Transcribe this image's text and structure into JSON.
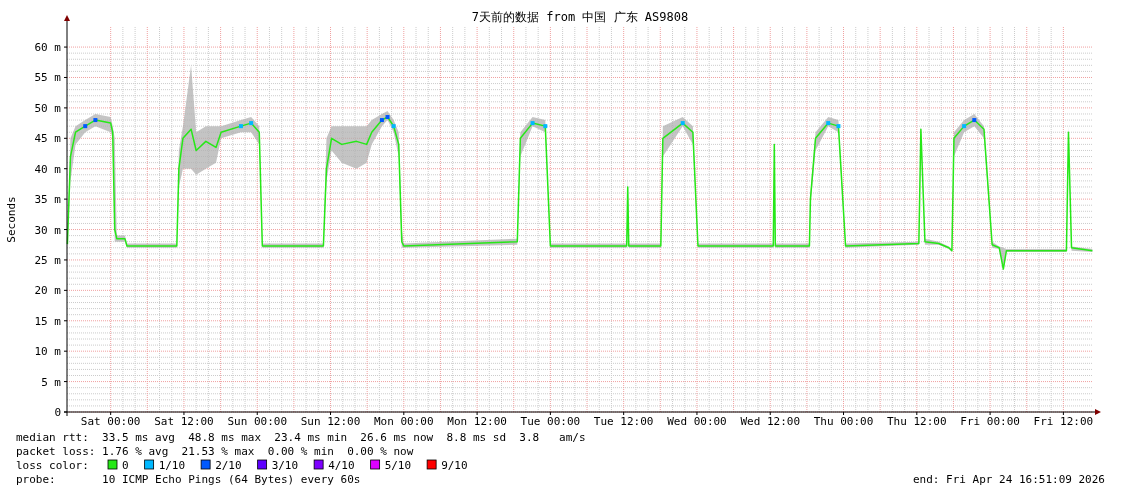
{
  "chart_data": {
    "type": "line",
    "title": "7天前的数据 from 中国 广东 AS9808",
    "ylabel": "Seconds",
    "legend_title": "loss color:",
    "legend": "bottom",
    "grid": true,
    "xlim": [
      "2026-04-17T16:51",
      "2026-04-24T16:51"
    ],
    "xticks": [
      {
        "value": "2026-04-18T00:00",
        "label": "Sat 00:00"
      },
      {
        "value": "2026-04-18T12:00",
        "label": "Sat 12:00"
      },
      {
        "value": "2026-04-19T00:00",
        "label": "Sun 00:00"
      },
      {
        "value": "2026-04-19T12:00",
        "label": "Sun 12:00"
      },
      {
        "value": "2026-04-20T00:00",
        "label": "Mon 00:00"
      },
      {
        "value": "2026-04-20T12:00",
        "label": "Mon 12:00"
      },
      {
        "value": "2026-04-21T00:00",
        "label": "Tue 00:00"
      },
      {
        "value": "2026-04-21T12:00",
        "label": "Tue 12:00"
      },
      {
        "value": "2026-04-22T00:00",
        "label": "Wed 00:00"
      },
      {
        "value": "2026-04-22T12:00",
        "label": "Wed 12:00"
      },
      {
        "value": "2026-04-23T00:00",
        "label": "Thu 00:00"
      },
      {
        "value": "2026-04-23T12:00",
        "label": "Thu 12:00"
      },
      {
        "value": "2026-04-24T00:00",
        "label": "Fri 00:00"
      },
      {
        "value": "2026-04-24T12:00",
        "label": "Fri 12:00"
      }
    ],
    "ylim": [
      0,
      63.3
    ],
    "yticks": [
      0,
      {
        "value": 5,
        "label": "5 m"
      },
      {
        "value": 10,
        "label": "10 m"
      },
      {
        "value": 15,
        "label": "15 m"
      },
      {
        "value": 20,
        "label": "20 m"
      },
      {
        "value": 25,
        "label": "25 m"
      },
      {
        "value": 30,
        "label": "30 m"
      },
      {
        "value": 35,
        "label": "35 m"
      },
      {
        "value": 40,
        "label": "40 m"
      },
      {
        "value": 45,
        "label": "45 m"
      },
      {
        "value": 50,
        "label": "50 m"
      },
      {
        "value": 55,
        "label": "55 m"
      },
      {
        "value": 60,
        "label": "60 m"
      }
    ],
    "x": [
      "2026-04-17T16:55",
      "2026-04-17T17:25",
      "2026-04-17T18:15",
      "2026-04-17T19:50",
      "2026-04-17T21:30",
      "2026-04-18T00:00",
      "2026-04-18T00:20",
      "2026-04-18T00:40",
      "2026-04-18T01:00",
      "2026-04-18T02:20",
      "2026-04-18T02:40",
      "2026-04-18T10:50",
      "2026-04-18T11:10",
      "2026-04-18T11:50",
      "2026-04-18T13:10",
      "2026-04-18T14:00",
      "2026-04-18T15:35",
      "2026-04-18T17:15",
      "2026-04-18T18:05",
      "2026-04-18T21:20",
      "2026-04-18T23:00",
      "2026-04-19T00:20",
      "2026-04-19T00:50",
      "2026-04-19T10:50",
      "2026-04-19T11:20",
      "2026-04-19T12:10",
      "2026-04-19T13:50",
      "2026-04-19T16:15",
      "2026-04-19T17:55",
      "2026-04-19T18:45",
      "2026-04-19T20:25",
      "2026-04-19T21:20",
      "2026-04-19T22:20",
      "2026-04-19T23:10",
      "2026-04-19T23:40",
      "2026-04-20T00:00",
      "2026-04-20T18:35",
      "2026-04-20T19:05",
      "2026-04-20T21:05",
      "2026-04-20T23:10",
      "2026-04-21T00:00",
      "2026-04-21T12:30",
      "2026-04-21T12:40",
      "2026-04-21T12:50",
      "2026-04-21T18:05",
      "2026-04-21T18:25",
      "2026-04-21T21:40",
      "2026-04-21T23:20",
      "2026-04-22T00:10",
      "2026-04-22T12:30",
      "2026-04-22T12:40",
      "2026-04-22T12:50",
      "2026-04-22T18:25",
      "2026-04-22T18:35",
      "2026-04-22T19:25",
      "2026-04-22T21:30",
      "2026-04-22T23:10",
      "2026-04-23T00:20",
      "2026-04-23T12:20",
      "2026-04-23T12:40",
      "2026-04-23T13:20",
      "2026-04-23T15:35",
      "2026-04-23T17:15",
      "2026-04-23T17:45",
      "2026-04-23T18:05",
      "2026-04-23T19:45",
      "2026-04-23T21:25",
      "2026-04-23T23:00",
      "2026-04-24T00:20",
      "2026-04-24T01:30",
      "2026-04-24T02:10",
      "2026-04-24T02:40",
      "2026-04-24T12:30",
      "2026-04-24T12:50",
      "2026-04-24T13:20",
      "2026-04-24T16:45"
    ],
    "series": [
      {
        "name": "0",
        "color": "#26e817",
        "values": [
          27.6,
          42,
          46,
          47,
          48,
          47.5,
          46,
          30,
          28.5,
          28.5,
          27.3,
          27.3,
          40,
          45,
          46.5,
          43,
          44.5,
          43.5,
          46,
          47,
          47.5,
          46,
          27.3,
          27.3,
          40,
          45,
          44,
          44.5,
          44,
          46,
          48,
          48.5,
          47,
          44,
          28,
          27.3,
          28,
          45,
          47.5,
          47,
          27.3,
          27.3,
          37,
          27.3,
          27.3,
          45,
          47.5,
          46,
          27.3,
          27.3,
          44,
          27.3,
          27.3,
          35,
          45,
          47.5,
          47,
          27.3,
          27.7,
          46.5,
          28,
          27.7,
          27,
          26.5,
          45,
          47,
          48,
          46.5,
          27.5,
          27,
          23.5,
          26.5,
          26.5,
          46,
          27,
          26.5
        ],
        "lower": [
          27.4,
          38,
          44,
          46,
          47,
          46,
          45,
          28,
          28,
          28,
          27,
          27,
          37,
          40,
          40,
          39,
          40,
          41,
          45,
          46,
          46,
          44,
          27,
          27,
          38,
          43,
          41,
          40,
          41,
          44,
          47,
          48,
          46,
          42,
          27,
          27,
          27.5,
          42,
          47,
          46,
          27,
          27,
          35,
          27,
          27,
          42,
          47,
          44,
          27,
          27,
          42,
          27,
          27,
          34,
          43,
          47,
          46,
          27,
          27.5,
          45,
          27.5,
          27.5,
          26.8,
          26.3,
          42,
          46,
          47,
          45,
          27,
          26.8,
          23.5,
          26.3,
          26.3,
          44,
          26.5,
          26.3
        ],
        "upper": [
          28,
          45,
          47,
          48,
          49,
          48.5,
          47,
          45,
          29,
          29,
          27.7,
          27.7,
          43,
          47,
          57,
          46,
          47,
          47,
          47,
          48,
          48.5,
          47,
          27.7,
          27.7,
          45,
          47,
          47,
          47,
          47,
          48,
          49,
          49.5,
          48,
          46,
          30,
          27.7,
          28.5,
          46,
          48.5,
          48,
          27.7,
          27.7,
          39,
          27.7,
          27.7,
          47,
          48.5,
          47,
          27.7,
          27.7,
          45,
          27.7,
          27.7,
          36,
          46,
          48.5,
          48,
          27.7,
          28,
          47,
          28.5,
          28,
          27.2,
          26.8,
          46,
          48,
          49,
          47,
          28,
          27.2,
          27,
          26.8,
          26.8,
          47,
          27.2,
          26.8
        ]
      },
      {
        "name": "1/10",
        "color": "#00b8ff",
        "type": "scatter",
        "values": [
          null,
          null,
          null,
          null,
          null,
          null,
          null,
          null,
          null,
          null,
          null,
          null,
          null,
          null,
          null,
          null,
          null,
          null,
          null,
          47,
          47.5,
          null,
          null,
          null,
          null,
          null,
          null,
          null,
          null,
          null,
          null,
          null,
          47,
          null,
          null,
          null,
          null,
          null,
          47.5,
          47,
          null,
          null,
          null,
          null,
          null,
          null,
          47.5,
          null,
          null,
          null,
          null,
          null,
          null,
          null,
          null,
          47.5,
          47,
          null,
          null,
          null,
          null,
          null,
          null,
          null,
          null,
          47,
          null,
          null,
          null,
          null,
          null,
          null,
          null,
          null,
          null,
          null
        ]
      },
      {
        "name": "2/10",
        "color": "#0059ff",
        "type": "scatter",
        "values": [
          null,
          null,
          null,
          47,
          48,
          null,
          null,
          null,
          null,
          null,
          null,
          null,
          null,
          null,
          null,
          null,
          null,
          null,
          null,
          null,
          null,
          null,
          null,
          null,
          null,
          null,
          null,
          null,
          null,
          null,
          48,
          48.5,
          null,
          null,
          null,
          null,
          null,
          null,
          null,
          null,
          null,
          null,
          null,
          null,
          null,
          null,
          null,
          null,
          null,
          null,
          null,
          null,
          null,
          null,
          null,
          null,
          null,
          null,
          null,
          null,
          null,
          null,
          null,
          null,
          null,
          null,
          48,
          null,
          null,
          null,
          null,
          null,
          null,
          null,
          null,
          null
        ]
      },
      {
        "name": "3/10",
        "color": "#5e00ff",
        "type": "scatter",
        "values": [
          null,
          null,
          null,
          null,
          null,
          null,
          null,
          null,
          null,
          null,
          null,
          null,
          null,
          null,
          null,
          null,
          null,
          null,
          null,
          null,
          null,
          null,
          null,
          null,
          null,
          null,
          null,
          null,
          null,
          null,
          null,
          null,
          null,
          null,
          null,
          null,
          null,
          null,
          null,
          null,
          null,
          null,
          null,
          null,
          null,
          null,
          null,
          null,
          null,
          null,
          null,
          null,
          null,
          null,
          null,
          null,
          null,
          null,
          null,
          null,
          null,
          null,
          null,
          null,
          null,
          null,
          null,
          null,
          null,
          null,
          null,
          null,
          null,
          null,
          null,
          null
        ]
      },
      {
        "name": "4/10",
        "color": "#7e00ff",
        "type": "scatter",
        "values": [
          null,
          null,
          null,
          null,
          null,
          null,
          null,
          null,
          null,
          null,
          null,
          null,
          null,
          null,
          null,
          null,
          null,
          null,
          null,
          null,
          null,
          null,
          null,
          null,
          null,
          null,
          null,
          null,
          null,
          null,
          null,
          null,
          null,
          null,
          null,
          null,
          null,
          null,
          null,
          null,
          null,
          null,
          null,
          null,
          null,
          null,
          null,
          null,
          null,
          null,
          null,
          null,
          null,
          null,
          null,
          null,
          null,
          null,
          null,
          null,
          null,
          null,
          null,
          null,
          null,
          null,
          null,
          null,
          null,
          null,
          null,
          null,
          null,
          null,
          null,
          null
        ]
      },
      {
        "name": "5/10",
        "color": "#dd00ff",
        "type": "scatter",
        "values": [
          null,
          null,
          null,
          null,
          null,
          null,
          null,
          null,
          null,
          null,
          null,
          null,
          null,
          null,
          null,
          null,
          null,
          null,
          null,
          null,
          null,
          null,
          null,
          null,
          null,
          null,
          null,
          null,
          null,
          null,
          null,
          null,
          null,
          null,
          null,
          null,
          null,
          null,
          null,
          null,
          null,
          null,
          null,
          null,
          null,
          null,
          null,
          null,
          null,
          null,
          null,
          null,
          null,
          null,
          null,
          null,
          null,
          null,
          null,
          null,
          null,
          null,
          null,
          null,
          null,
          null,
          null,
          null,
          null,
          null,
          null,
          null,
          null,
          null,
          null,
          null
        ]
      },
      {
        "name": "9/10",
        "color": "#ff0000",
        "type": "scatter",
        "values": [
          null,
          null,
          null,
          null,
          null,
          null,
          null,
          null,
          null,
          null,
          null,
          null,
          null,
          null,
          null,
          null,
          null,
          null,
          null,
          null,
          null,
          null,
          null,
          null,
          null,
          null,
          null,
          null,
          null,
          null,
          null,
          null,
          null,
          null,
          null,
          null,
          null,
          null,
          null,
          null,
          null,
          null,
          null,
          null,
          null,
          null,
          null,
          null,
          null,
          null,
          null,
          null,
          null,
          null,
          null,
          null,
          null,
          null,
          null,
          null,
          null,
          null,
          null,
          null,
          null,
          null,
          null,
          null,
          null,
          null,
          null,
          null,
          null,
          null,
          null,
          null
        ]
      }
    ],
    "annotations": [
      "median rtt:  33.5 ms avg  48.8 ms max  23.4 ms min  26.6 ms now  8.8 ms sd  3.8   am/s",
      "packet loss: 1.76 % avg  21.53 % max  0.00 % min  0.00 % now",
      "probe:       10 ICMP Echo Pings (64 Bytes) every 60s",
      "end: Fri Apr 24 16:51:09 2026"
    ]
  }
}
